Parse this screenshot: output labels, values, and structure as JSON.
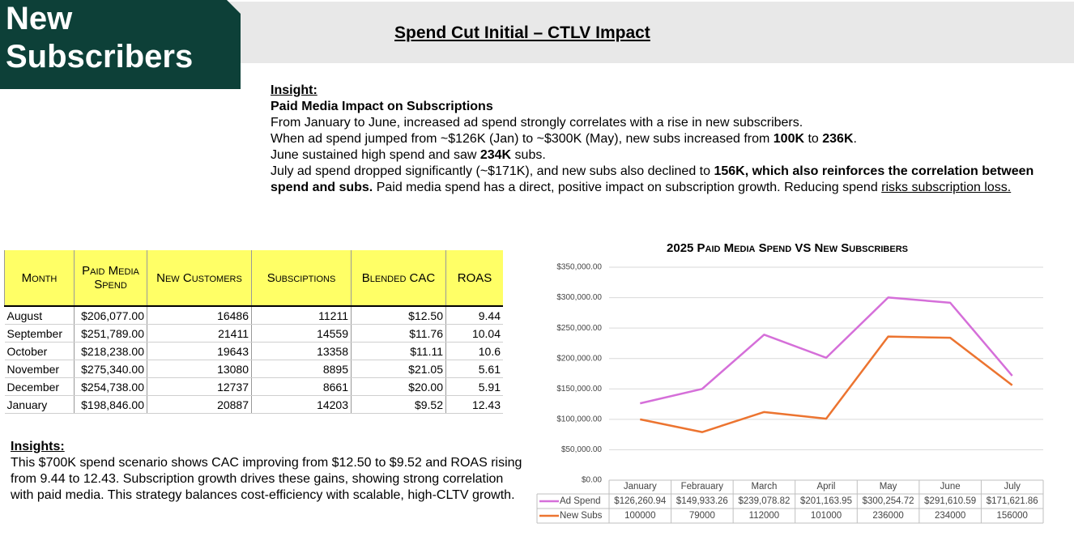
{
  "header": {
    "section": "New Subscribers",
    "title": "Spend Cut Initial – CTLV Impact"
  },
  "insight": {
    "label": "Insight:",
    "heading": "Paid Media Impact on Subscriptions",
    "paragraphs": [
      [
        "From January to June, increased ad spend strongly correlates with a rise in new subscribers."
      ],
      [
        "When ad spend jumped from ~$126K (Jan) to ~$300K (May), new subs increased from ",
        "100K",
        " to ",
        "236K",
        "."
      ],
      [
        "June sustained high spend and saw ",
        "234K",
        " subs."
      ],
      [
        "July ad spend dropped significantly (~$171K), and new subs also declined to ",
        "156K, which also reinforces the correlation between spend and subs.",
        " Paid media spend has a direct, positive impact on subscription growth. Reducing spend ",
        "risks subscription loss."
      ]
    ]
  },
  "table": {
    "columns": [
      "Month",
      "Paid Media Spend",
      "New Customers",
      "Subsciptions",
      "Blended CAC",
      "ROAS"
    ],
    "rows": [
      [
        "August",
        "$206,077.00",
        16486,
        11211,
        "$12.50",
        9.44
      ],
      [
        "September",
        "$251,789.00",
        21411,
        14559,
        "$11.76",
        10.04
      ],
      [
        "October",
        "$218,238.00",
        19643,
        13358,
        "$11.11",
        10.6
      ],
      [
        "November",
        "$275,340.00",
        13080,
        8895,
        "$21.05",
        5.61
      ],
      [
        "December",
        "$254,738.00",
        12737,
        8661,
        "$20.00",
        5.91
      ],
      [
        "January",
        "$198,846.00",
        20887,
        14203,
        "$9.52",
        12.43
      ]
    ]
  },
  "insights": {
    "label": "Insights:",
    "text": "This $700K spend scenario shows CAC improving from $12.50 to $9.52 and ROAS rising from 9.44 to 12.43. Subscription growth drives these gains, showing strong correlation with paid media. This strategy balances cost-efficiency with scalable, high-CLTV growth."
  },
  "chart_data": {
    "type": "line",
    "title": "2025 Paid Media Spend VS New Subscribers",
    "categories": [
      "January",
      "Febrauary",
      "March",
      "April",
      "May",
      "June",
      "July"
    ],
    "series": [
      {
        "name": "Ad Spend",
        "color": "#d56fd9",
        "values": [
          126260.94,
          149933.26,
          239078.82,
          201163.95,
          300254.72,
          291610.59,
          171621.86
        ],
        "value_labels": [
          "$126,260.94",
          "$149,933.26",
          "$239,078.82",
          "$201,163.95",
          "$300,254.72",
          "$291,610.59",
          "$171,621.86"
        ]
      },
      {
        "name": "New Subs",
        "color": "#ec7430",
        "values": [
          100000,
          79000,
          112000,
          101000,
          236000,
          234000,
          156000
        ]
      }
    ],
    "ylim": [
      0,
      350000
    ],
    "yticks": [
      {
        "value": 0,
        "label": "$0.00"
      },
      {
        "value": 50000,
        "label": "$50,000.00"
      },
      {
        "value": 100000,
        "label": "$100,000.00"
      },
      {
        "value": 150000,
        "label": "$150,000.00"
      },
      {
        "value": 200000,
        "label": "$200,000.00"
      },
      {
        "value": 250000,
        "label": "$250,000.00"
      },
      {
        "value": 300000,
        "label": "$300,000.00"
      },
      {
        "value": 350000,
        "label": "$350,000.00"
      }
    ],
    "grid": true
  }
}
